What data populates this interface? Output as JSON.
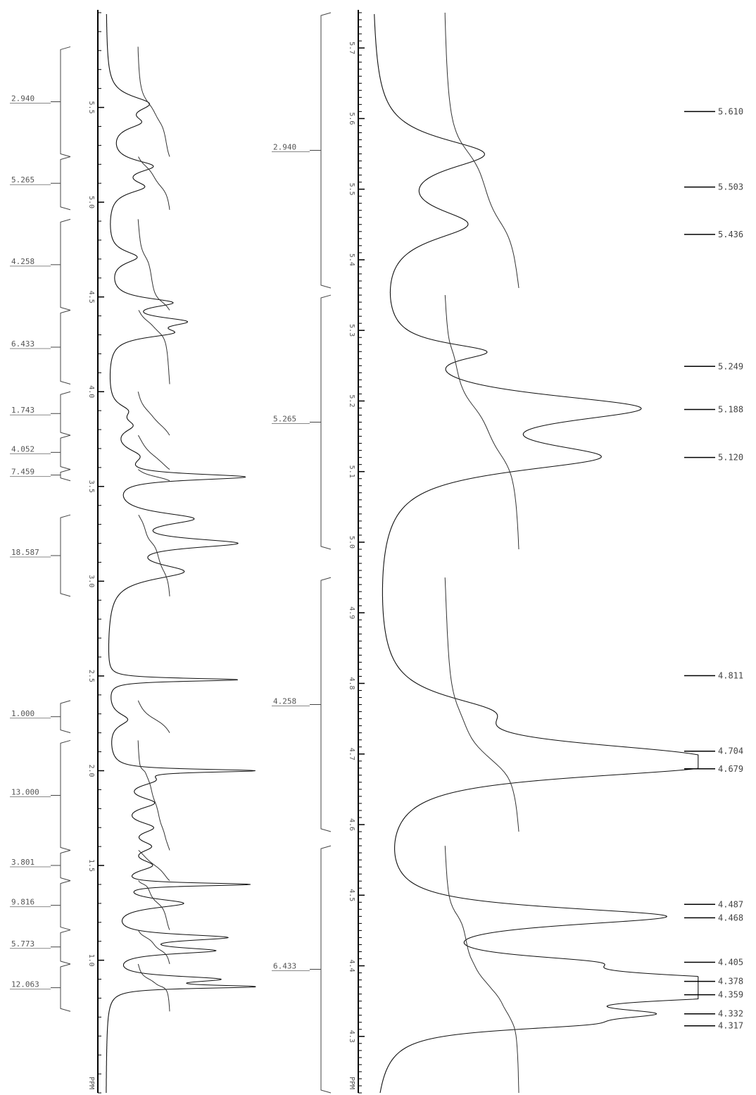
{
  "chart_data": [
    {
      "type": "line",
      "title": "",
      "xlabel": "PPM",
      "axis_unit_label": "PPM",
      "xlim": [
        6.0,
        0.3
      ],
      "x_ticks": [
        {
          "value": 5.5,
          "label": "5.5"
        },
        {
          "value": 5.0,
          "label": "5.0"
        },
        {
          "value": 4.5,
          "label": "4.5"
        },
        {
          "value": 4.0,
          "label": "4.0"
        },
        {
          "value": 3.5,
          "label": "3.5"
        },
        {
          "value": 3.0,
          "label": "3.0"
        },
        {
          "value": 2.5,
          "label": "2.5"
        },
        {
          "value": 2.0,
          "label": "2.0"
        },
        {
          "value": 1.5,
          "label": "1.5"
        },
        {
          "value": 1.0,
          "label": "1.0"
        }
      ],
      "integrals": [
        {
          "from": 5.82,
          "to": 5.24,
          "value": "2.940"
        },
        {
          "from": 5.24,
          "to": 4.96,
          "value": "5.265"
        },
        {
          "from": 4.91,
          "to": 4.43,
          "value": "4.258"
        },
        {
          "from": 4.43,
          "to": 4.04,
          "value": "6.433"
        },
        {
          "from": 4.0,
          "to": 3.77,
          "value": "1.743"
        },
        {
          "from": 3.77,
          "to": 3.59,
          "value": "4.052"
        },
        {
          "from": 3.59,
          "to": 3.53,
          "value": "7.459"
        },
        {
          "from": 3.35,
          "to": 2.92,
          "value": "18.587"
        },
        {
          "from": 2.37,
          "to": 2.2,
          "value": "1.000"
        },
        {
          "from": 2.16,
          "to": 1.58,
          "value": "13.000"
        },
        {
          "from": 1.58,
          "to": 1.42,
          "value": "3.801"
        },
        {
          "from": 1.42,
          "to": 1.16,
          "value": "9.816"
        },
        {
          "from": 1.16,
          "to": 0.98,
          "value": "5.773"
        },
        {
          "from": 0.98,
          "to": 0.73,
          "value": "12.063"
        }
      ],
      "peaks": [
        {
          "ppm": 5.52,
          "height": 0.3,
          "width": 0.05
        },
        {
          "ppm": 5.42,
          "height": 0.2,
          "width": 0.04
        },
        {
          "ppm": 5.19,
          "height": 0.32,
          "width": 0.04
        },
        {
          "ppm": 5.08,
          "height": 0.25,
          "width": 0.04
        },
        {
          "ppm": 4.71,
          "height": 0.22,
          "width": 0.04
        },
        {
          "ppm": 4.47,
          "height": 0.45,
          "width": 0.03
        },
        {
          "ppm": 4.37,
          "height": 0.5,
          "width": 0.03
        },
        {
          "ppm": 4.31,
          "height": 0.4,
          "width": 0.03
        },
        {
          "ppm": 3.9,
          "height": 0.12,
          "width": 0.04
        },
        {
          "ppm": 3.82,
          "height": 0.15,
          "width": 0.04
        },
        {
          "ppm": 3.66,
          "height": 0.2,
          "width": 0.05
        },
        {
          "ppm": 3.55,
          "height": 1.0,
          "width": 0.02
        },
        {
          "ppm": 3.33,
          "height": 0.6,
          "width": 0.04
        },
        {
          "ppm": 3.2,
          "height": 0.9,
          "width": 0.03
        },
        {
          "ppm": 3.05,
          "height": 0.55,
          "width": 0.05
        },
        {
          "ppm": 2.48,
          "height": 1.0,
          "width": 0.01
        },
        {
          "ppm": 2.27,
          "height": 0.15,
          "width": 0.04
        },
        {
          "ppm": 2.0,
          "height": 1.0,
          "width": 0.01
        },
        {
          "ppm": 1.95,
          "height": 0.3,
          "width": 0.04
        },
        {
          "ppm": 1.83,
          "height": 0.3,
          "width": 0.04
        },
        {
          "ppm": 1.7,
          "height": 0.28,
          "width": 0.04
        },
        {
          "ppm": 1.6,
          "height": 0.25,
          "width": 0.04
        },
        {
          "ppm": 1.5,
          "height": 0.28,
          "width": 0.04
        },
        {
          "ppm": 1.4,
          "height": 1.0,
          "width": 0.01
        },
        {
          "ppm": 1.3,
          "height": 0.55,
          "width": 0.03
        },
        {
          "ppm": 1.12,
          "height": 0.85,
          "width": 0.02
        },
        {
          "ppm": 1.05,
          "height": 0.75,
          "width": 0.02
        },
        {
          "ppm": 0.9,
          "height": 0.8,
          "width": 0.02
        },
        {
          "ppm": 0.86,
          "height": 1.0,
          "width": 0.01
        }
      ]
    },
    {
      "type": "line",
      "title": "",
      "xlabel": "PPM",
      "axis_unit_label": "PPM",
      "xlim": [
        5.75,
        4.22
      ],
      "x_ticks": [
        {
          "value": 5.7,
          "label": "5.7"
        },
        {
          "value": 5.6,
          "label": "5.6"
        },
        {
          "value": 5.5,
          "label": "5.5"
        },
        {
          "value": 5.4,
          "label": "5.4"
        },
        {
          "value": 5.3,
          "label": "5.3"
        },
        {
          "value": 5.2,
          "label": "5.2"
        },
        {
          "value": 5.1,
          "label": "5.1"
        },
        {
          "value": 5.0,
          "label": "5.0"
        },
        {
          "value": 4.9,
          "label": "4.9"
        },
        {
          "value": 4.8,
          "label": "4.8"
        },
        {
          "value": 4.7,
          "label": "4.7"
        },
        {
          "value": 4.6,
          "label": "4.6"
        },
        {
          "value": 4.5,
          "label": "4.5"
        },
        {
          "value": 4.4,
          "label": "4.4"
        },
        {
          "value": 4.3,
          "label": "4.3"
        }
      ],
      "integrals": [
        {
          "from": 5.75,
          "to": 5.36,
          "value": "2.940"
        },
        {
          "from": 5.35,
          "to": 4.99,
          "value": "5.265"
        },
        {
          "from": 4.95,
          "to": 4.59,
          "value": "4.258"
        },
        {
          "from": 4.57,
          "to": 4.22,
          "value": "6.433"
        }
      ],
      "peaks": [
        {
          "ppm": 5.55,
          "height": 0.37,
          "width": 0.028
        },
        {
          "ppm": 5.45,
          "height": 0.3,
          "width": 0.028
        },
        {
          "ppm": 5.27,
          "height": 0.3,
          "width": 0.015
        },
        {
          "ppm": 5.19,
          "height": 0.85,
          "width": 0.025
        },
        {
          "ppm": 5.12,
          "height": 0.7,
          "width": 0.025
        },
        {
          "ppm": 4.76,
          "height": 0.3,
          "width": 0.028
        },
        {
          "ppm": 4.7,
          "height": 0.75,
          "width": 0.022
        },
        {
          "ppm": 4.68,
          "height": 0.7,
          "width": 0.018
        },
        {
          "ppm": 4.47,
          "height": 0.97,
          "width": 0.016
        },
        {
          "ppm": 4.405,
          "height": 0.45,
          "width": 0.012
        },
        {
          "ppm": 4.378,
          "height": 1.0,
          "width": 0.014
        },
        {
          "ppm": 4.359,
          "height": 0.9,
          "width": 0.012
        },
        {
          "ppm": 4.332,
          "height": 0.6,
          "width": 0.01
        },
        {
          "ppm": 4.317,
          "height": 0.45,
          "width": 0.01
        }
      ],
      "peak_labels": [
        "5.610",
        "5.503",
        "5.436",
        "5.249",
        "5.188",
        "5.120",
        "4.811",
        "4.704",
        "4.679",
        "4.487",
        "4.468",
        "4.405",
        "4.378",
        "4.359",
        "4.332",
        "4.317"
      ]
    }
  ]
}
